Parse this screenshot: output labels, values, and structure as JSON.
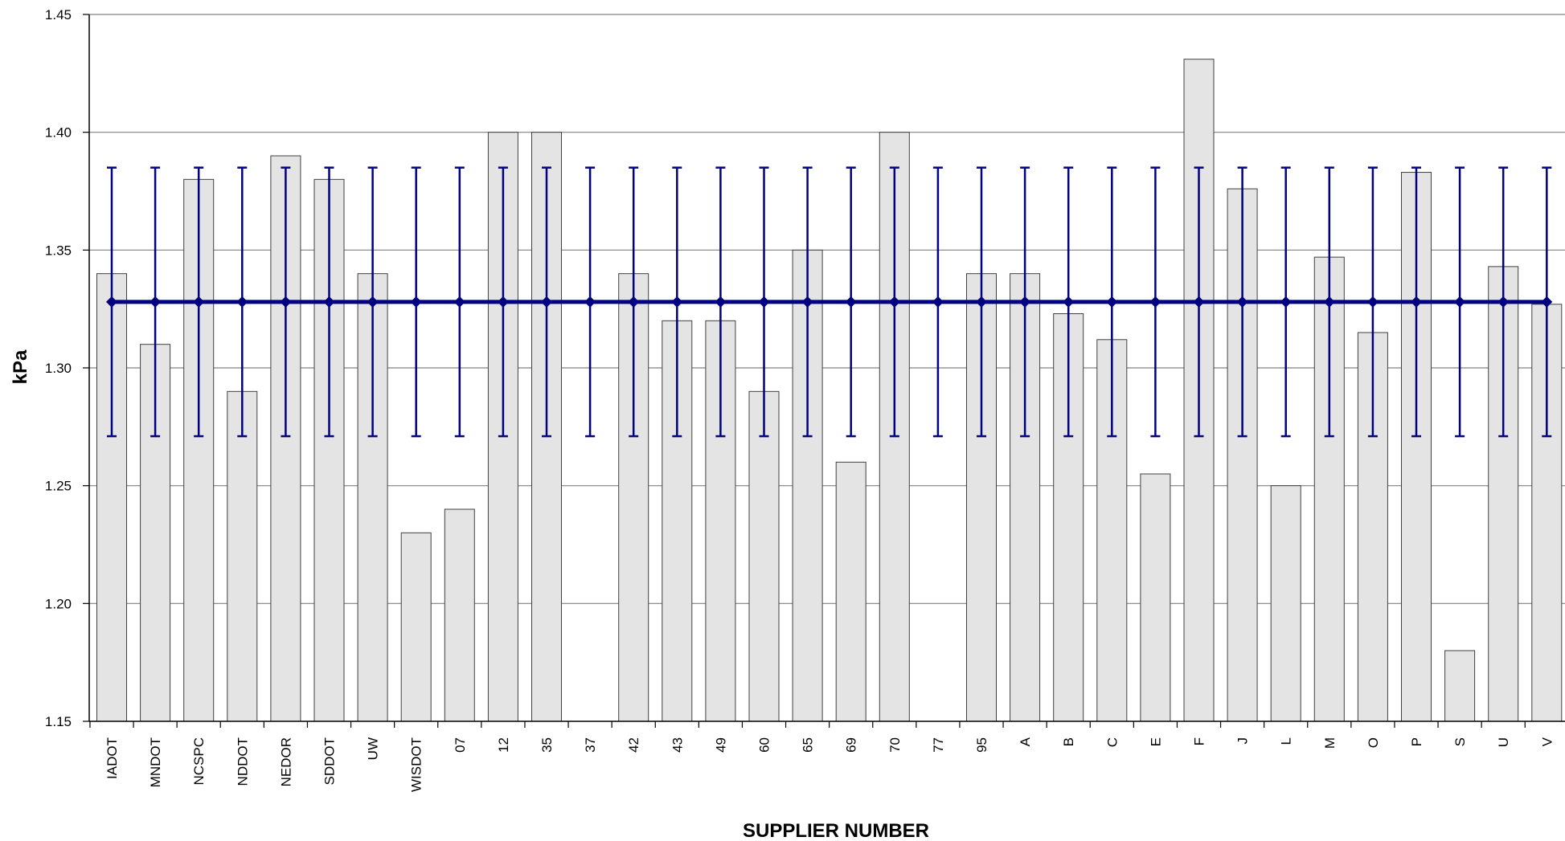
{
  "chart_data": {
    "type": "bar",
    "xlabel": "SUPPLIER NUMBER",
    "ylabel": "kPa",
    "ylim": [
      1.15,
      1.45
    ],
    "yticks": [
      1.15,
      1.2,
      1.25,
      1.3,
      1.35,
      1.4,
      1.45
    ],
    "ytick_labels": [
      "1.15",
      "1.20",
      "1.25",
      "1.30",
      "1.35",
      "1.40",
      "1.45"
    ],
    "grid": true,
    "categories": [
      "IADOT",
      "MNDOT",
      "NCSPC",
      "NDDOT",
      "NEDOR",
      "SDDOT",
      "UW",
      "WISDOT",
      "07",
      "12",
      "35",
      "37",
      "42",
      "43",
      "49",
      "60",
      "65",
      "69",
      "70",
      "77",
      "95",
      "A",
      "B",
      "C",
      "E",
      "F",
      "J",
      "L",
      "M",
      "O",
      "P",
      "S",
      "U",
      "V"
    ],
    "series": [
      {
        "kind": "bar",
        "values": [
          1.34,
          1.31,
          1.38,
          1.29,
          1.39,
          1.38,
          1.34,
          1.23,
          1.24,
          1.4,
          1.4,
          null,
          1.34,
          1.32,
          1.32,
          1.29,
          1.35,
          1.26,
          1.4,
          null,
          1.34,
          1.34,
          1.323,
          1.312,
          1.255,
          1.431,
          1.376,
          1.25,
          1.347,
          1.315,
          1.383,
          1.18,
          1.343,
          1.327
        ]
      },
      {
        "kind": "line",
        "mean": 1.328,
        "error_upper": 1.385,
        "error_lower": 1.271
      }
    ],
    "colors": {
      "bar_fill": "#e4e4e4",
      "bar_stroke": "#404040",
      "line": "#000080",
      "grid": "#808080"
    }
  }
}
